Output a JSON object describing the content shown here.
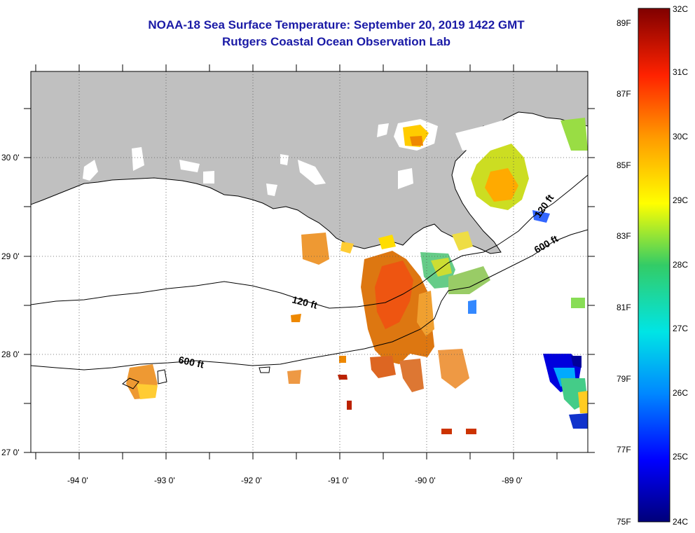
{
  "title": "NOAA-18 Sea Surface Temperature:  September 20, 2019 1422 GMT",
  "subtitle": "Rutgers Coastal Ocean Observation Lab",
  "map": {
    "lon_labels": [
      "-94 0'",
      "-93 0'",
      "-92 0'",
      "-91 0'",
      "-90 0'",
      "-89 0'"
    ],
    "lat_labels": [
      "30 0'",
      "29 0'",
      "28 0'",
      "27 0'"
    ],
    "contour_labels": [
      {
        "text": "120 ft",
        "id": "c120w"
      },
      {
        "text": "120 ft",
        "id": "c120e"
      },
      {
        "text": "600 ft",
        "id": "c600w"
      },
      {
        "text": "600 ft",
        "id": "c600e"
      }
    ],
    "land_color": "#c0c0c0"
  },
  "colorbar": {
    "fahrenheit": [
      "89F",
      "87F",
      "85F",
      "83F",
      "81F",
      "79F",
      "77F",
      "75F"
    ],
    "celsius": [
      "32C",
      "31C",
      "30C",
      "29C",
      "28C",
      "27C",
      "26C",
      "25C",
      "24C"
    ]
  }
}
